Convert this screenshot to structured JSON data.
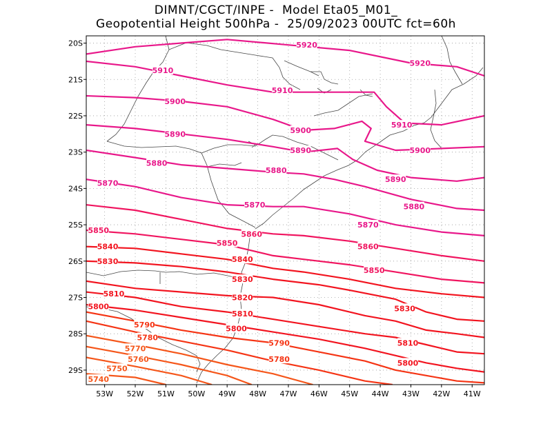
{
  "header": {
    "line1": "DIMNT/CGCT/INPE -  Model Eta05_M01_",
    "line2": "Geopotential Height 500hPa -  25/09/2023 00UTC fct=60h"
  },
  "map": {
    "lon_range": [
      -53.6,
      -40.6
    ],
    "lat_range": [
      -29.4,
      -19.8
    ],
    "grid": "dotted",
    "lon_ticks": [
      {
        "value": -53,
        "label": "53W"
      },
      {
        "value": -52,
        "label": "52W"
      },
      {
        "value": -51,
        "label": "51W"
      },
      {
        "value": -50,
        "label": "50W"
      },
      {
        "value": -49,
        "label": "49W"
      },
      {
        "value": -48,
        "label": "48W"
      },
      {
        "value": -47,
        "label": "47W"
      },
      {
        "value": -46,
        "label": "46W"
      },
      {
        "value": -45,
        "label": "45W"
      },
      {
        "value": -44,
        "label": "44W"
      },
      {
        "value": -43,
        "label": "43W"
      },
      {
        "value": -42,
        "label": "42W"
      },
      {
        "value": -41,
        "label": "41W"
      }
    ],
    "lat_ticks": [
      {
        "value": -20,
        "label": "20S"
      },
      {
        "value": -21,
        "label": "21S"
      },
      {
        "value": -22,
        "label": "22S"
      },
      {
        "value": -23,
        "label": "23S"
      },
      {
        "value": -24,
        "label": "24S"
      },
      {
        "value": -25,
        "label": "25S"
      },
      {
        "value": -26,
        "label": "26S"
      },
      {
        "value": -27,
        "label": "27S"
      },
      {
        "value": -28,
        "label": "28S"
      },
      {
        "value": -29,
        "label": "29S"
      }
    ]
  },
  "contours": [
    {
      "level": "5920",
      "color": "#e8178a",
      "pts": [
        [
          -53.6,
          -20.3
        ],
        [
          -52,
          -20.1
        ],
        [
          -50.5,
          -20.0
        ],
        [
          -49,
          -19.9
        ],
        [
          -47,
          -20.05
        ],
        [
          -45,
          -20.2
        ],
        [
          -43,
          -20.55
        ],
        [
          -41.5,
          -20.65
        ],
        [
          -40.6,
          -20.9
        ]
      ],
      "labels": [
        [
          -46.4,
          -20.05
        ],
        [
          -42.7,
          -20.55
        ]
      ]
    },
    {
      "level": "5910",
      "color": "#e8178a",
      "pts": [
        [
          -53.6,
          -20.5
        ],
        [
          -52,
          -20.65
        ],
        [
          -50.5,
          -20.9
        ],
        [
          -49,
          -21.15
        ],
        [
          -47.5,
          -21.35
        ],
        [
          -46,
          -21.35
        ],
        [
          -45,
          -21.35
        ],
        [
          -44.2,
          -21.35
        ],
        [
          -43.8,
          -21.75
        ],
        [
          -43.2,
          -22.2
        ],
        [
          -42,
          -22.25
        ],
        [
          -40.6,
          -22.0
        ]
      ],
      "labels": [
        [
          -51.1,
          -20.75
        ],
        [
          -47.2,
          -21.3
        ],
        [
          -43.3,
          -22.25
        ]
      ]
    },
    {
      "level": "5900",
      "color": "#e8178a",
      "pts": [
        [
          -53.6,
          -21.45
        ],
        [
          -52,
          -21.5
        ],
        [
          -50.5,
          -21.6
        ],
        [
          -49,
          -21.75
        ],
        [
          -47.5,
          -22.1
        ],
        [
          -46.5,
          -22.4
        ],
        [
          -45.5,
          -22.35
        ],
        [
          -44.6,
          -22.15
        ],
        [
          -44.3,
          -22.35
        ],
        [
          -44.5,
          -22.7
        ],
        [
          -43.5,
          -22.95
        ],
        [
          -42,
          -22.9
        ],
        [
          -40.6,
          -22.85
        ]
      ],
      "labels": [
        [
          -50.7,
          -21.6
        ],
        [
          -46.6,
          -22.4
        ],
        [
          -42.7,
          -22.95
        ]
      ]
    },
    {
      "level": "5890",
      "color": "#e8178a",
      "pts": [
        [
          -53.6,
          -22.25
        ],
        [
          -52,
          -22.35
        ],
        [
          -50.5,
          -22.5
        ],
        [
          -49,
          -22.65
        ],
        [
          -47.5,
          -22.85
        ],
        [
          -46.5,
          -23.0
        ],
        [
          -45.4,
          -22.9
        ],
        [
          -44.9,
          -23.2
        ],
        [
          -44.1,
          -23.5
        ],
        [
          -43,
          -23.7
        ],
        [
          -41.5,
          -23.8
        ],
        [
          -40.6,
          -23.7
        ]
      ],
      "labels": [
        [
          -50.7,
          -22.5
        ],
        [
          -46.6,
          -22.95
        ],
        [
          -43.5,
          -23.75
        ]
      ]
    },
    {
      "level": "5880",
      "color": "#e8178a",
      "pts": [
        [
          -53.6,
          -22.95
        ],
        [
          -52,
          -23.15
        ],
        [
          -50.5,
          -23.35
        ],
        [
          -49,
          -23.45
        ],
        [
          -47.5,
          -23.55
        ],
        [
          -46.5,
          -23.6
        ],
        [
          -45.5,
          -23.75
        ],
        [
          -44.5,
          -23.95
        ],
        [
          -43,
          -24.3
        ],
        [
          -41.5,
          -24.55
        ],
        [
          -40.6,
          -24.6
        ]
      ],
      "labels": [
        [
          -51.3,
          -23.3
        ],
        [
          -47.4,
          -23.5
        ],
        [
          -42.9,
          -24.5
        ]
      ]
    },
    {
      "level": "5870",
      "color": "#e8178a",
      "pts": [
        [
          -53.6,
          -23.75
        ],
        [
          -52,
          -23.95
        ],
        [
          -50.5,
          -24.25
        ],
        [
          -49,
          -24.45
        ],
        [
          -47.5,
          -24.5
        ],
        [
          -46.5,
          -24.5
        ],
        [
          -45,
          -24.7
        ],
        [
          -43.5,
          -25.0
        ],
        [
          -42,
          -25.2
        ],
        [
          -40.6,
          -25.3
        ]
      ],
      "labels": [
        [
          -52.9,
          -23.85
        ],
        [
          -48.1,
          -24.45
        ],
        [
          -44.4,
          -25.0
        ]
      ]
    },
    {
      "level": "5860",
      "color": "#f0145f",
      "pts": [
        [
          -53.6,
          -24.45
        ],
        [
          -52,
          -24.6
        ],
        [
          -50.5,
          -24.85
        ],
        [
          -49,
          -25.1
        ],
        [
          -47.5,
          -25.25
        ],
        [
          -46.5,
          -25.3
        ],
        [
          -45,
          -25.45
        ],
        [
          -43.5,
          -25.65
        ],
        [
          -42,
          -25.85
        ],
        [
          -40.6,
          -26.0
        ]
      ],
      "labels": [
        [
          -48.2,
          -25.25
        ],
        [
          -44.4,
          -25.6
        ]
      ]
    },
    {
      "level": "5850",
      "color": "#f0145f",
      "pts": [
        [
          -53.6,
          -25.15
        ],
        [
          -52,
          -25.25
        ],
        [
          -50.5,
          -25.4
        ],
        [
          -49,
          -25.55
        ],
        [
          -47.5,
          -25.85
        ],
        [
          -46.5,
          -25.95
        ],
        [
          -45,
          -26.1
        ],
        [
          -43.5,
          -26.3
        ],
        [
          -42,
          -26.5
        ],
        [
          -40.6,
          -26.6
        ]
      ],
      "labels": [
        [
          -53.2,
          -25.15
        ],
        [
          -49,
          -25.5
        ],
        [
          -44.2,
          -26.25
        ]
      ]
    },
    {
      "level": "5840",
      "color": "#f2141f",
      "pts": [
        [
          -53.6,
          -25.6
        ],
        [
          -52,
          -25.65
        ],
        [
          -50.5,
          -25.8
        ],
        [
          -49,
          -25.95
        ],
        [
          -47.5,
          -26.2
        ],
        [
          -46.5,
          -26.3
        ],
        [
          -45,
          -26.5
        ],
        [
          -43.5,
          -26.75
        ],
        [
          -42,
          -26.9
        ],
        [
          -40.6,
          -27.0
        ]
      ],
      "labels": [
        [
          -52.9,
          -25.6
        ],
        [
          -48.5,
          -25.95
        ]
      ]
    },
    {
      "level": "5830",
      "color": "#f2141f",
      "pts": [
        [
          -53.6,
          -26.0
        ],
        [
          -52,
          -26.05
        ],
        [
          -50.5,
          -26.15
        ],
        [
          -49,
          -26.3
        ],
        [
          -47.5,
          -26.5
        ],
        [
          -46,
          -26.65
        ],
        [
          -45,
          -26.8
        ],
        [
          -43.5,
          -27.05
        ],
        [
          -42.5,
          -27.4
        ],
        [
          -41.5,
          -27.6
        ],
        [
          -40.6,
          -27.65
        ]
      ],
      "labels": [
        [
          -52.9,
          -26.0
        ],
        [
          -48.5,
          -26.5
        ],
        [
          -43.2,
          -27.3
        ]
      ]
    },
    {
      "level": "5820",
      "color": "#f2141f",
      "pts": [
        [
          -53.6,
          -26.55
        ],
        [
          -52,
          -26.75
        ],
        [
          -50.5,
          -26.85
        ],
        [
          -49,
          -26.95
        ],
        [
          -47.5,
          -27.0
        ],
        [
          -46,
          -27.2
        ],
        [
          -44.5,
          -27.5
        ],
        [
          -43.5,
          -27.65
        ],
        [
          -42.5,
          -27.9
        ],
        [
          -41.5,
          -28.0
        ],
        [
          -40.6,
          -28.1
        ]
      ],
      "labels": [
        [
          -48.5,
          -27.0
        ]
      ]
    },
    {
      "level": "5810",
      "color": "#f2141f",
      "pts": [
        [
          -53.6,
          -26.85
        ],
        [
          -52,
          -27.0
        ],
        [
          -50.5,
          -27.25
        ],
        [
          -49,
          -27.4
        ],
        [
          -47.5,
          -27.6
        ],
        [
          -46,
          -27.8
        ],
        [
          -44.5,
          -28.0
        ],
        [
          -43.5,
          -28.1
        ],
        [
          -42.5,
          -28.3
        ],
        [
          -41.5,
          -28.5
        ],
        [
          -40.6,
          -28.55
        ]
      ],
      "labels": [
        [
          -52.7,
          -26.9
        ],
        [
          -48.5,
          -27.45
        ],
        [
          -43.1,
          -28.25
        ]
      ]
    },
    {
      "level": "5800",
      "color": "#f2141f",
      "pts": [
        [
          -53.6,
          -27.2
        ],
        [
          -52,
          -27.35
        ],
        [
          -50.5,
          -27.55
        ],
        [
          -49,
          -27.75
        ],
        [
          -47.5,
          -27.95
        ],
        [
          -46,
          -28.15
        ],
        [
          -44.5,
          -28.4
        ],
        [
          -43.5,
          -28.6
        ],
        [
          -42.5,
          -28.8
        ],
        [
          -41.5,
          -28.95
        ],
        [
          -40.6,
          -29.05
        ]
      ],
      "labels": [
        [
          -53.2,
          -27.25
        ],
        [
          -48.7,
          -27.85
        ],
        [
          -43.1,
          -28.8
        ]
      ]
    },
    {
      "level": "5790",
      "color": "#f53414",
      "pts": [
        [
          -53.6,
          -27.4
        ],
        [
          -52,
          -27.65
        ],
        [
          -50.5,
          -27.9
        ],
        [
          -49,
          -28.1
        ],
        [
          -47.5,
          -28.25
        ],
        [
          -46,
          -28.5
        ],
        [
          -44.5,
          -28.75
        ],
        [
          -43.5,
          -29.0
        ],
        [
          -42.5,
          -29.15
        ],
        [
          -41.5,
          -29.3
        ],
        [
          -40.6,
          -29.35
        ]
      ],
      "labels": [
        [
          -51.7,
          -27.75
        ],
        [
          -47.3,
          -28.25
        ]
      ]
    },
    {
      "level": "5780",
      "color": "#f53414",
      "pts": [
        [
          -53.6,
          -27.65
        ],
        [
          -52,
          -27.95
        ],
        [
          -50.5,
          -28.2
        ],
        [
          -49,
          -28.45
        ],
        [
          -47.5,
          -28.75
        ],
        [
          -46,
          -29.0
        ],
        [
          -44.5,
          -29.3
        ],
        [
          -43.6,
          -29.4
        ]
      ],
      "labels": [
        [
          -51.6,
          -28.1
        ],
        [
          -47.3,
          -28.7
        ]
      ]
    },
    {
      "level": "5770",
      "color": "#f5561a",
      "pts": [
        [
          -53.6,
          -28.05
        ],
        [
          -52,
          -28.3
        ],
        [
          -50.5,
          -28.55
        ],
        [
          -49,
          -28.85
        ],
        [
          -47.5,
          -29.1
        ],
        [
          -46.2,
          -29.4
        ]
      ],
      "labels": [
        [
          -52.0,
          -28.4
        ]
      ]
    },
    {
      "level": "5760",
      "color": "#f5561a",
      "pts": [
        [
          -53.6,
          -28.35
        ],
        [
          -52,
          -28.6
        ],
        [
          -50.5,
          -28.85
        ],
        [
          -49,
          -29.15
        ],
        [
          -48.2,
          -29.4
        ]
      ],
      "labels": [
        [
          -51.9,
          -28.7
        ]
      ]
    },
    {
      "level": "5750",
      "color": "#f5561a",
      "pts": [
        [
          -53.6,
          -28.65
        ],
        [
          -52,
          -28.9
        ],
        [
          -50.5,
          -29.15
        ],
        [
          -49.5,
          -29.4
        ]
      ],
      "labels": [
        [
          -52.6,
          -28.95
        ]
      ]
    },
    {
      "level": "5740",
      "color": "#f5561a",
      "pts": [
        [
          -53.6,
          -29.1
        ],
        [
          -52,
          -29.2
        ],
        [
          -51,
          -29.4
        ]
      ],
      "labels": [
        [
          -53.2,
          -29.25
        ]
      ]
    }
  ]
}
